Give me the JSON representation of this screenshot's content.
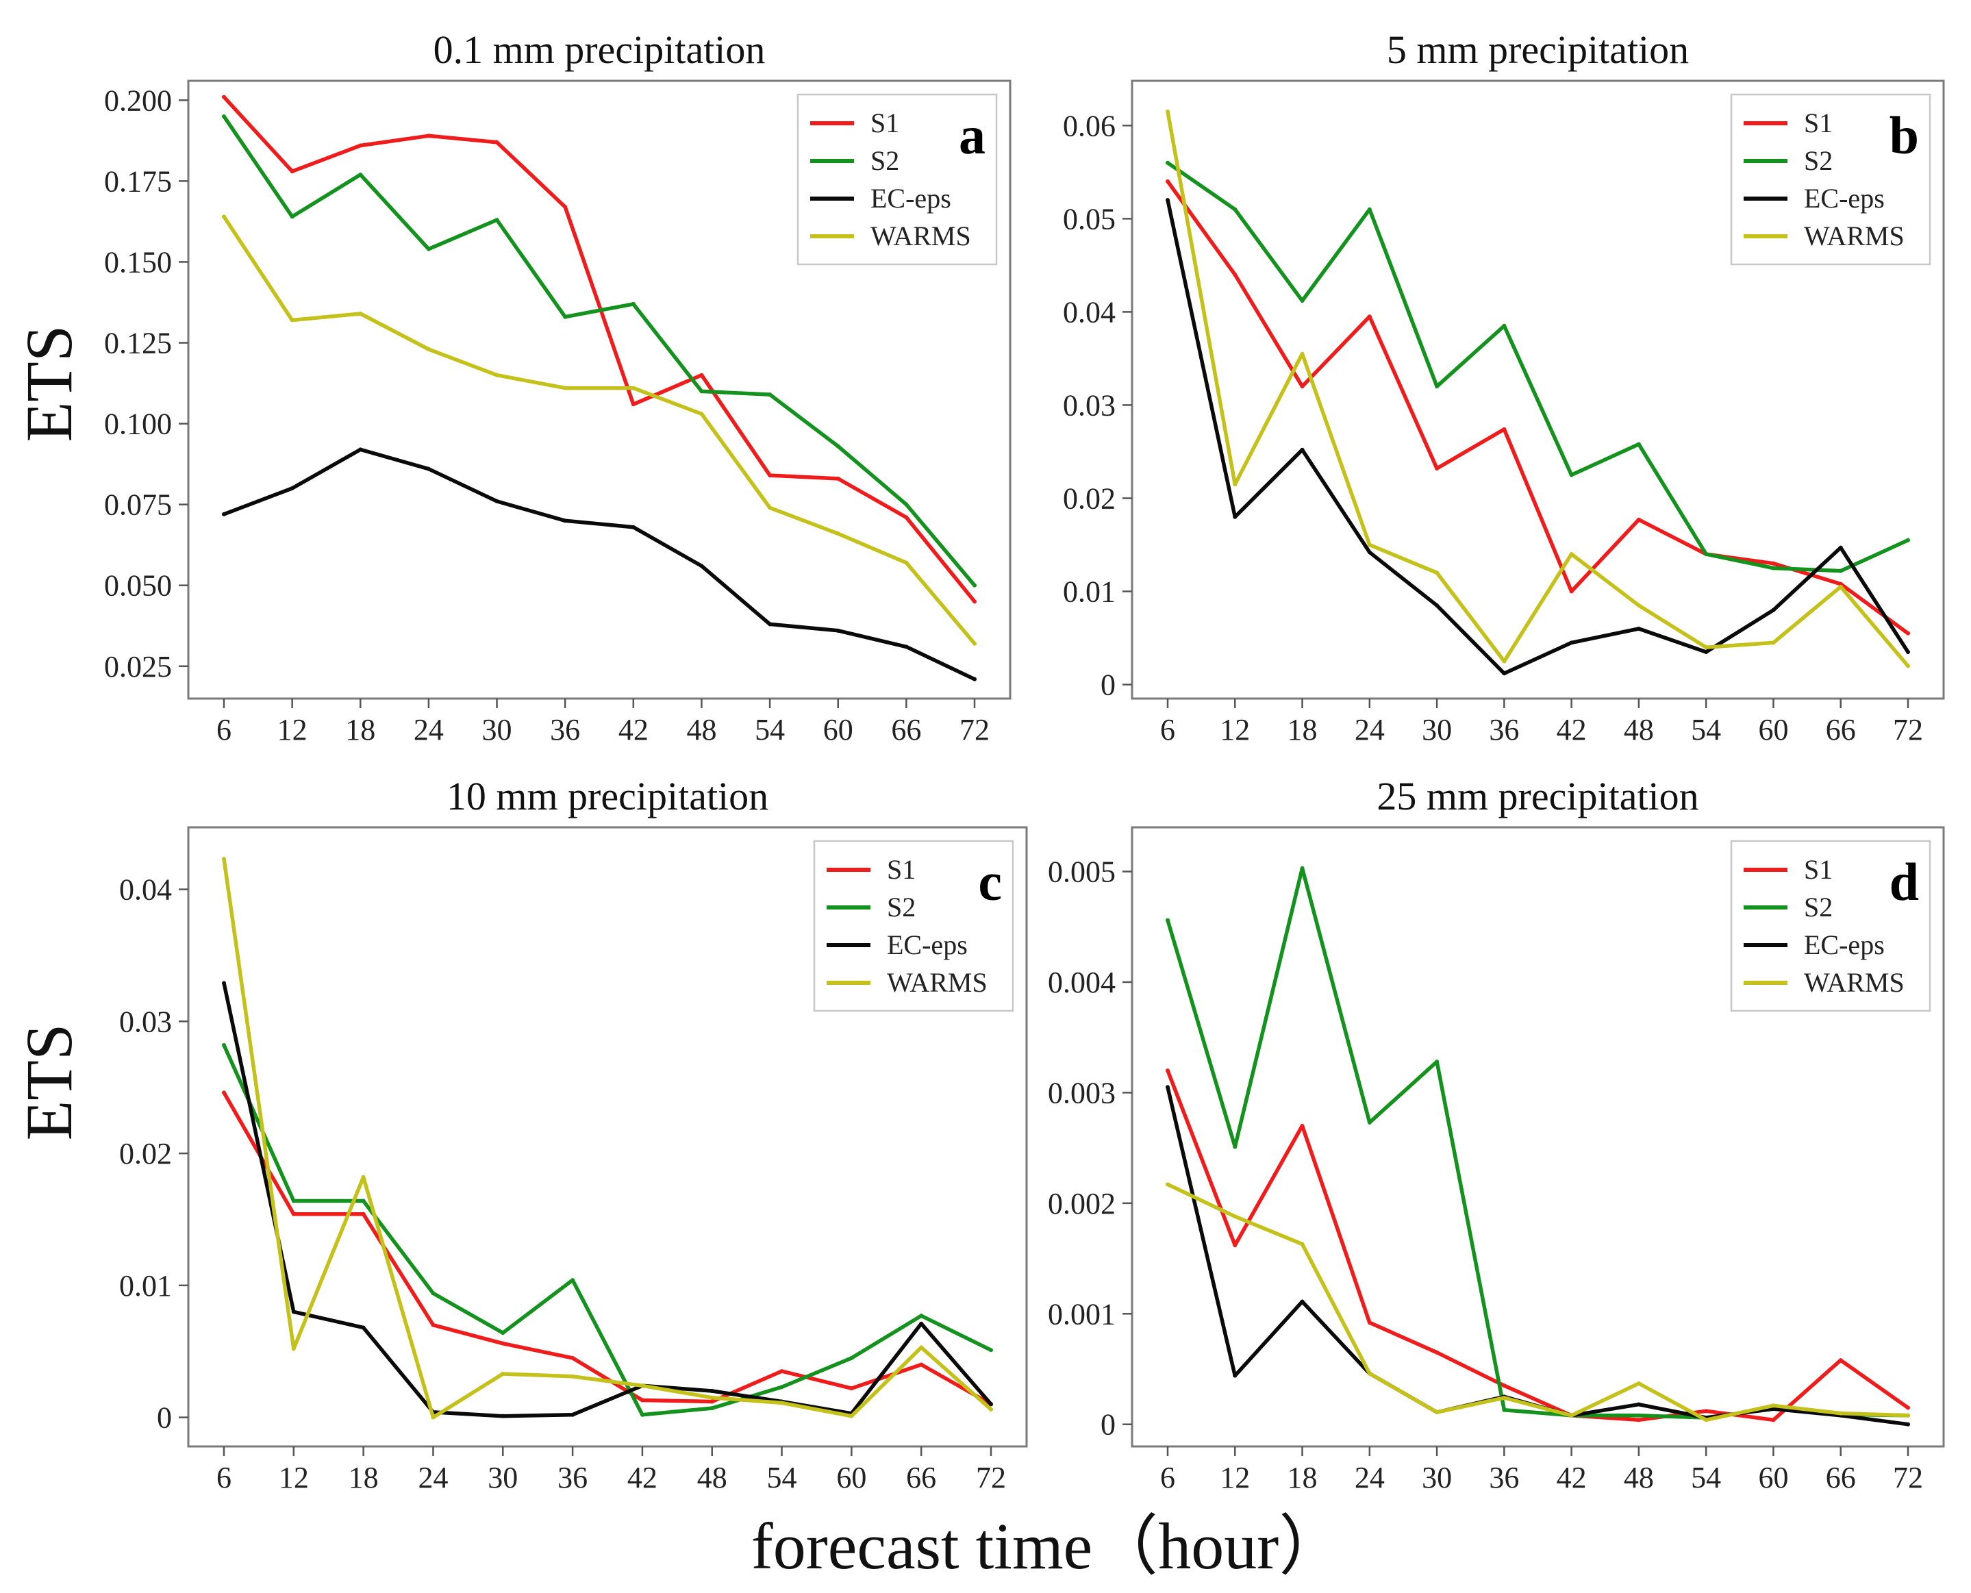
{
  "figure": {
    "ylabel": "ETS",
    "xlabel": "forecast time（hour）"
  },
  "colors": {
    "S1": "#f01c1c",
    "S2": "#14921e",
    "EC-eps": "#0a0a0a",
    "WARMS": "#c4c21a"
  },
  "chart_data": [
    {
      "type": "line",
      "panel": "a",
      "title": "0.1 mm precipitation",
      "xlabel": "forecast time（hour）",
      "ylabel": "ETS",
      "x": [
        6,
        12,
        18,
        24,
        30,
        36,
        42,
        48,
        54,
        60,
        66,
        72
      ],
      "ylim": [
        0.015,
        0.206
      ],
      "yticks": [
        0.025,
        0.05,
        0.075,
        0.1,
        0.125,
        0.15,
        0.175,
        0.2
      ],
      "ytick_labels": [
        "0.025",
        "0.050",
        "0.075",
        "0.100",
        "0.125",
        "0.150",
        "0.175",
        "0.200"
      ],
      "legend_position": "top-right",
      "series": [
        {
          "name": "S1",
          "values": [
            0.201,
            0.178,
            0.186,
            0.189,
            0.187,
            0.167,
            0.106,
            0.115,
            0.084,
            0.083,
            0.071,
            0.045
          ]
        },
        {
          "name": "S2",
          "values": [
            0.195,
            0.164,
            0.177,
            0.154,
            0.163,
            0.133,
            0.137,
            0.11,
            0.109,
            0.093,
            0.075,
            0.05
          ]
        },
        {
          "name": "EC-eps",
          "values": [
            0.072,
            0.08,
            0.092,
            0.086,
            0.076,
            0.07,
            0.068,
            0.056,
            0.038,
            0.036,
            0.031,
            0.021
          ]
        },
        {
          "name": "WARMS",
          "values": [
            0.164,
            0.132,
            0.134,
            0.123,
            0.115,
            0.111,
            0.111,
            0.103,
            0.074,
            0.066,
            0.057,
            0.032
          ]
        }
      ]
    },
    {
      "type": "line",
      "panel": "b",
      "title": "5 mm precipitation",
      "xlabel": "forecast time（hour）",
      "ylabel": "ETS",
      "x": [
        6,
        12,
        18,
        24,
        30,
        36,
        42,
        48,
        54,
        60,
        66,
        72
      ],
      "ylim": [
        -0.0015,
        0.0648
      ],
      "yticks": [
        0,
        0.01,
        0.02,
        0.03,
        0.04,
        0.05,
        0.06
      ],
      "ytick_labels": [
        "0",
        "0.01",
        "0.02",
        "0.03",
        "0.04",
        "0.05",
        "0.06"
      ],
      "legend_position": "top-right",
      "series": [
        {
          "name": "S1",
          "values": [
            0.054,
            0.044,
            0.032,
            0.0395,
            0.0232,
            0.0274,
            0.01,
            0.0177,
            0.014,
            0.013,
            0.0108,
            0.0055
          ]
        },
        {
          "name": "S2",
          "values": [
            0.056,
            0.051,
            0.0412,
            0.051,
            0.032,
            0.0385,
            0.0225,
            0.0258,
            0.014,
            0.0125,
            0.0122,
            0.0155
          ]
        },
        {
          "name": "EC-eps",
          "values": [
            0.052,
            0.018,
            0.0252,
            0.0142,
            0.0085,
            0.0012,
            0.0045,
            0.006,
            0.0035,
            0.008,
            0.0147,
            0.0035
          ]
        },
        {
          "name": "WARMS",
          "values": [
            0.0615,
            0.0215,
            0.0355,
            0.015,
            0.012,
            0.0025,
            0.014,
            0.0085,
            0.004,
            0.0045,
            0.0105,
            0.002
          ]
        }
      ]
    },
    {
      "type": "line",
      "panel": "c",
      "title": "10 mm precipitation",
      "xlabel": "forecast time（hour）",
      "ylabel": "ETS",
      "x": [
        6,
        12,
        18,
        24,
        30,
        36,
        42,
        48,
        54,
        60,
        66,
        72
      ],
      "ylim": [
        -0.0022,
        0.0447
      ],
      "yticks": [
        0,
        0.01,
        0.02,
        0.03,
        0.04
      ],
      "ytick_labels": [
        "0",
        "0.01",
        "0.02",
        "0.03",
        "0.04"
      ],
      "legend_position": "top-right",
      "series": [
        {
          "name": "S1",
          "values": [
            0.0246,
            0.0154,
            0.0154,
            0.007,
            0.0056,
            0.0045,
            0.0013,
            0.0012,
            0.0035,
            0.0022,
            0.004,
            0.001
          ]
        },
        {
          "name": "S2",
          "values": [
            0.0282,
            0.0164,
            0.0164,
            0.0094,
            0.0064,
            0.0104,
            0.0002,
            0.0007,
            0.0023,
            0.0045,
            0.0077,
            0.0051
          ]
        },
        {
          "name": "EC-eps",
          "values": [
            0.0329,
            0.008,
            0.0068,
            0.0004,
            0.0001,
            0.0002,
            0.0024,
            0.002,
            0.0012,
            0.0003,
            0.0071,
            0.001
          ]
        },
        {
          "name": "WARMS",
          "values": [
            0.0423,
            0.0052,
            0.0182,
            0.0,
            0.0033,
            0.0031,
            0.0024,
            0.0015,
            0.0011,
            0.0001,
            0.0053,
            0.0006
          ]
        }
      ]
    },
    {
      "type": "line",
      "panel": "d",
      "title": "25 mm precipitation",
      "xlabel": "forecast time（hour）",
      "ylabel": "ETS",
      "x": [
        6,
        12,
        18,
        24,
        30,
        36,
        42,
        48,
        54,
        60,
        66,
        72
      ],
      "ylim": [
        -0.0002,
        0.0054
      ],
      "yticks": [
        0,
        0.001,
        0.002,
        0.003,
        0.004,
        0.005
      ],
      "ytick_labels": [
        "0",
        "0.001",
        "0.002",
        "0.003",
        "0.004",
        "0.005"
      ],
      "legend_position": "top-right",
      "series": [
        {
          "name": "S1",
          "values": [
            0.0032,
            0.00162,
            0.0027,
            0.00092,
            0.00065,
            0.00035,
            8e-05,
            4e-05,
            0.00012,
            4e-05,
            0.00058,
            0.00015
          ]
        },
        {
          "name": "S2",
          "values": [
            0.00456,
            0.00251,
            0.00503,
            0.00273,
            0.00328,
            0.00013,
            8e-05,
            8e-05,
            6e-05,
            0.00014,
            9e-05,
            8e-05
          ]
        },
        {
          "name": "EC-eps",
          "values": [
            0.00305,
            0.00044,
            0.00111,
            0.00046,
            0.00011,
            0.00025,
            8e-05,
            0.00018,
            6e-05,
            0.00014,
            8e-05,
            0.0
          ]
        },
        {
          "name": "WARMS",
          "values": [
            0.00217,
            0.00188,
            0.00163,
            0.00046,
            0.00011,
            0.00024,
            8e-05,
            0.00037,
            4e-05,
            0.00017,
            0.0001,
            8e-05
          ]
        }
      ]
    }
  ]
}
